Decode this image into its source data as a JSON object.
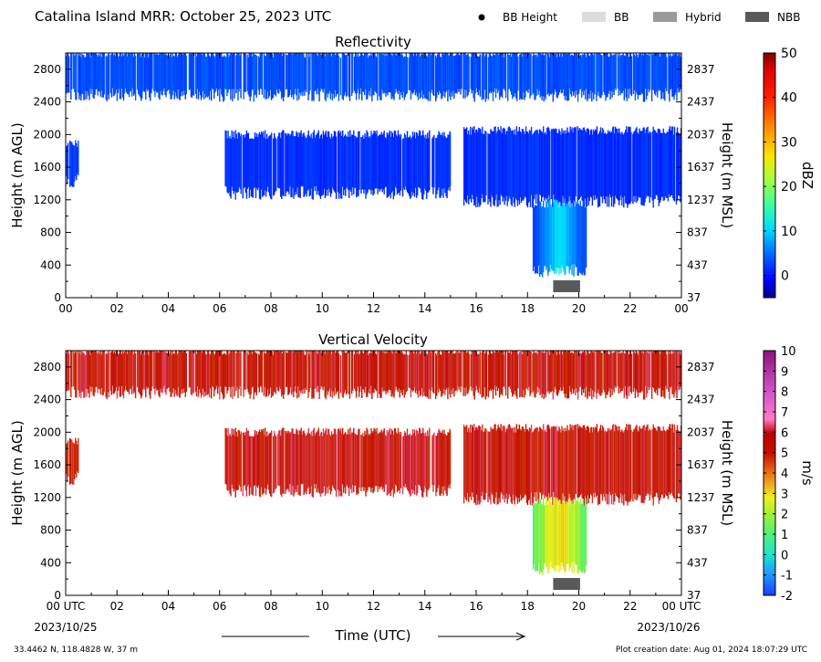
{
  "header": {
    "title": "Catalina Island MRR:  October 25, 2023 UTC",
    "legend": [
      {
        "label": "BB Height",
        "kind": "dot",
        "color": "#000000"
      },
      {
        "label": "BB",
        "kind": "box",
        "color": "#dcdcdc"
      },
      {
        "label": "Hybrid",
        "kind": "box",
        "color": "#9a9a9a"
      },
      {
        "label": "NBB",
        "kind": "box",
        "color": "#595959"
      }
    ]
  },
  "footer": {
    "location": "33.4462 N, 118.4828 W, 37 m",
    "creation": "Plot creation date: Aug 01, 2024 18:07:29 UTC",
    "start_date": "2023/10/25",
    "end_date": "2023/10/26",
    "xlabel": "Time (UTC)"
  },
  "chart_data": [
    {
      "type": "heatmap",
      "title": "Reflectivity",
      "ylabel": "Height (m AGL)",
      "ylabel_right": "Height (m MSL)",
      "x_ticks": [
        "00",
        "02",
        "04",
        "06",
        "08",
        "10",
        "12",
        "14",
        "16",
        "18",
        "20",
        "22",
        "00"
      ],
      "x_range_hours": [
        0,
        24
      ],
      "y_range_m_agl": [
        0,
        3000
      ],
      "y_ticks_agl": [
        0,
        400,
        800,
        1200,
        1600,
        2000,
        2400,
        2800
      ],
      "y_ticks_msl": [
        37,
        437,
        837,
        1237,
        1637,
        2037,
        2437,
        2837
      ],
      "colorbar": {
        "label": "dBZ",
        "range": [
          -5,
          50
        ],
        "ticks": [
          0,
          10,
          20,
          30,
          40,
          50
        ]
      },
      "nbb_period_hours": [
        19.0,
        20.05
      ],
      "features": [
        {
          "desc": "upper layer",
          "t": [
            0.0,
            24.0
          ],
          "z": [
            2450,
            3000
          ],
          "value": 3
        },
        {
          "desc": "mid layer early",
          "t": [
            0.0,
            0.5
          ],
          "z": [
            1400,
            1900
          ],
          "value": 2
        },
        {
          "desc": "mid layer",
          "t": [
            6.2,
            15.0
          ],
          "z": [
            1250,
            2000
          ],
          "value": 1
        },
        {
          "desc": "mid layer late",
          "t": [
            15.5,
            24.0
          ],
          "z": [
            1150,
            2050
          ],
          "value": 1
        },
        {
          "desc": "rain shaft",
          "t": [
            18.2,
            20.3
          ],
          "z": [
            300,
            1150
          ],
          "value": 7
        }
      ]
    },
    {
      "type": "heatmap",
      "title": "Vertical Velocity",
      "ylabel": "Height (m AGL)",
      "ylabel_right": "Height (m MSL)",
      "x_ticks": [
        "00 UTC",
        "02",
        "04",
        "06",
        "08",
        "10",
        "12",
        "14",
        "16",
        "18",
        "20",
        "22",
        "00 UTC"
      ],
      "x_range_hours": [
        0,
        24
      ],
      "y_range_m_agl": [
        0,
        3000
      ],
      "y_ticks_agl": [
        0,
        400,
        800,
        1200,
        1600,
        2000,
        2400,
        2800
      ],
      "y_ticks_msl": [
        37,
        437,
        837,
        1237,
        1637,
        2037,
        2437,
        2837
      ],
      "colorbar": {
        "label": "m/s",
        "range": [
          -2,
          10
        ],
        "ticks": [
          -2,
          -1,
          0,
          1,
          2,
          3,
          4,
          5,
          6,
          7,
          8,
          9,
          10
        ]
      },
      "nbb_period_hours": [
        19.0,
        20.05
      ],
      "features": [
        {
          "desc": "upper layer",
          "t": [
            0.0,
            24.0
          ],
          "z": [
            2450,
            3000
          ],
          "value": 6
        },
        {
          "desc": "mid layer early",
          "t": [
            0.0,
            0.5
          ],
          "z": [
            1400,
            1900
          ],
          "value": 6
        },
        {
          "desc": "mid layer",
          "t": [
            6.2,
            15.0
          ],
          "z": [
            1250,
            2000
          ],
          "value": 6
        },
        {
          "desc": "mid layer late",
          "t": [
            15.5,
            24.0
          ],
          "z": [
            1150,
            2050
          ],
          "value": 6
        },
        {
          "desc": "rain shaft",
          "t": [
            18.2,
            20.3
          ],
          "z": [
            300,
            1150
          ],
          "value": 2.5
        }
      ]
    }
  ],
  "colors": {
    "refl_dark_blue": "#0a1ee6",
    "refl_mid_blue": "#1e50ff",
    "refl_light_blue": "#2ea6ff",
    "vel_red": "#c00f00",
    "vel_green": "#8cf03c",
    "vel_yellow": "#e8f01e",
    "nbb_box": "#595959"
  }
}
